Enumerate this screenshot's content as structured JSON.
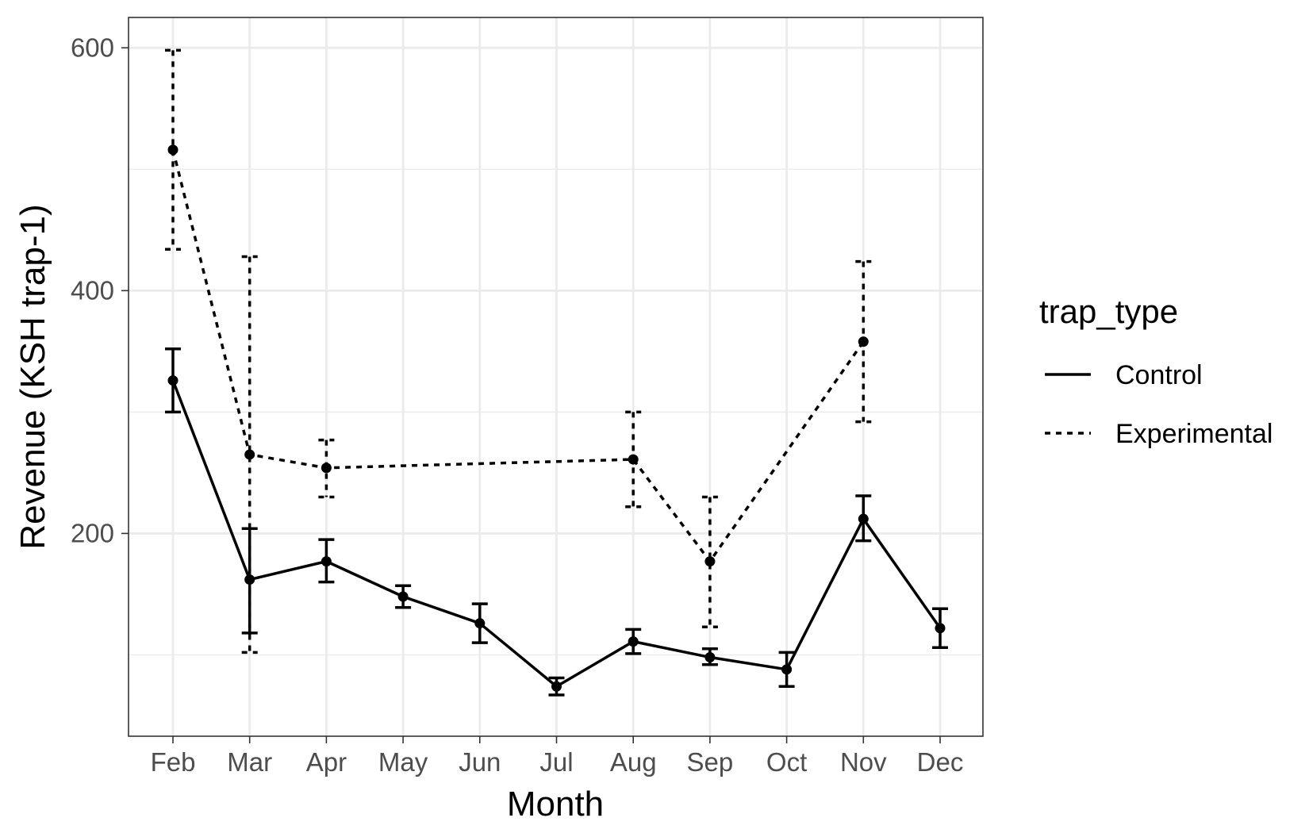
{
  "chart_data": {
    "type": "line",
    "xlabel": "Month",
    "ylabel": "Revenue (KSH trap-1)",
    "categories": [
      "Feb",
      "Mar",
      "Apr",
      "May",
      "Jun",
      "Jul",
      "Aug",
      "Sep",
      "Oct",
      "Nov",
      "Dec"
    ],
    "yticks": [
      200,
      400,
      600
    ],
    "ylim": [
      33,
      625
    ],
    "grid": true,
    "legend_title": "trap_type",
    "legend_position": "right",
    "colors": {
      "line": "#000000",
      "grid": "#ebebeb",
      "panel_border": "#333333"
    },
    "series": [
      {
        "name": "Control",
        "linestyle": "solid",
        "points": [
          {
            "x": "Feb",
            "y": 326,
            "lo": 300,
            "hi": 352
          },
          {
            "x": "Mar",
            "y": 162,
            "lo": 118,
            "hi": 204
          },
          {
            "x": "Apr",
            "y": 177,
            "lo": 160,
            "hi": 195
          },
          {
            "x": "May",
            "y": 148,
            "lo": 139,
            "hi": 157
          },
          {
            "x": "Jun",
            "y": 126,
            "lo": 110,
            "hi": 142
          },
          {
            "x": "Jul",
            "y": 74,
            "lo": 67,
            "hi": 81
          },
          {
            "x": "Aug",
            "y": 111,
            "lo": 101,
            "hi": 121
          },
          {
            "x": "Sep",
            "y": 98,
            "lo": 92,
            "hi": 105
          },
          {
            "x": "Oct",
            "y": 88,
            "lo": 74,
            "hi": 102
          },
          {
            "x": "Nov",
            "y": 212,
            "lo": 194,
            "hi": 231
          },
          {
            "x": "Dec",
            "y": 122,
            "lo": 106,
            "hi": 138
          }
        ]
      },
      {
        "name": "Experimental",
        "linestyle": "dashed",
        "points": [
          {
            "x": "Feb",
            "y": 516,
            "lo": 434,
            "hi": 598
          },
          {
            "x": "Mar",
            "y": 265,
            "lo": 102,
            "hi": 428
          },
          {
            "x": "Apr",
            "y": 254,
            "lo": 230,
            "hi": 277
          },
          {
            "x": "Aug",
            "y": 261,
            "lo": 222,
            "hi": 300
          },
          {
            "x": "Sep",
            "y": 177,
            "lo": 123,
            "hi": 230
          },
          {
            "x": "Nov",
            "y": 358,
            "lo": 292,
            "hi": 424
          }
        ]
      }
    ]
  }
}
